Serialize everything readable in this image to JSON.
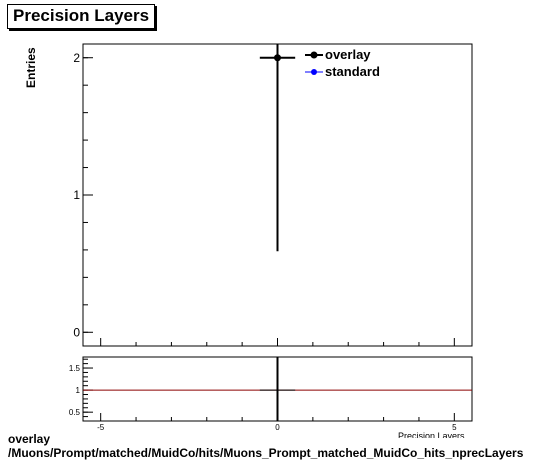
{
  "chart_data": [
    {
      "type": "scatter",
      "title": "Precision Layers",
      "xlabel": "Precision Layers",
      "ylabel": "Entries",
      "xlim": [
        -5.5,
        5.5
      ],
      "ylim": [
        -0.1,
        2.1
      ],
      "x_ticks": [
        "-5",
        "0",
        "5"
      ],
      "y_ticks": [
        "0",
        "1",
        "2"
      ],
      "grid": false,
      "legend_position": "top-right",
      "series": [
        {
          "name": "overlay",
          "color": "#000000",
          "points": [
            {
              "x": 0,
              "y": 2,
              "xerr": 0.5,
              "yerr": 1.41
            }
          ]
        },
        {
          "name": "standard",
          "color": "#0000ff",
          "points": []
        }
      ]
    },
    {
      "type": "scatter",
      "title": "",
      "xlabel": "Precision Layers",
      "ylabel": "",
      "xlim": [
        -5.5,
        5.5
      ],
      "ylim": [
        0.3,
        1.75
      ],
      "x_ticks": [
        "-5",
        "0",
        "5"
      ],
      "y_ticks": [
        "0.5",
        "1",
        "1.5"
      ],
      "reference_line": {
        "y": 1,
        "color": "#8b0000"
      },
      "series": [
        {
          "name": "",
          "color": "#000000",
          "points": [
            {
              "x": 0,
              "y": 1,
              "xerr": 0.5,
              "yerr": 1.0
            }
          ]
        }
      ]
    }
  ],
  "footer": {
    "line1": "overlay",
    "line2": "/Muons/Prompt/matched/MuidCo/hits/Muons_Prompt_matched_MuidCo_hits_nprecLayers"
  }
}
